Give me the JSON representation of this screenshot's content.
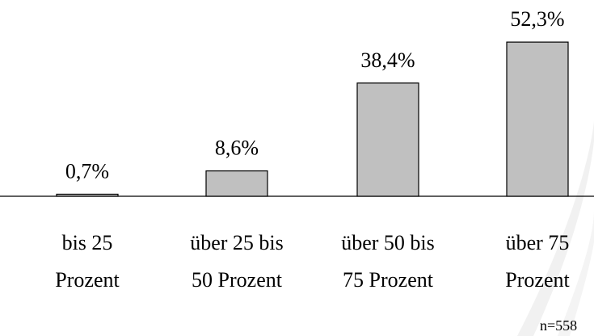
{
  "chart_data": {
    "type": "bar",
    "categories": [
      [
        "bis 25",
        "Prozent"
      ],
      [
        "über 25 bis",
        "50 Prozent"
      ],
      [
        "über 50 bis",
        "75 Prozent"
      ],
      [
        "über 75",
        "Prozent"
      ]
    ],
    "values": [
      0.7,
      8.6,
      38.4,
      52.3
    ],
    "value_labels": [
      "0,7%",
      "8,6%",
      "38,4%",
      "52,3%"
    ],
    "color": "#c0c0c0",
    "ylim": [
      0,
      60
    ],
    "annotation": "n=558"
  }
}
